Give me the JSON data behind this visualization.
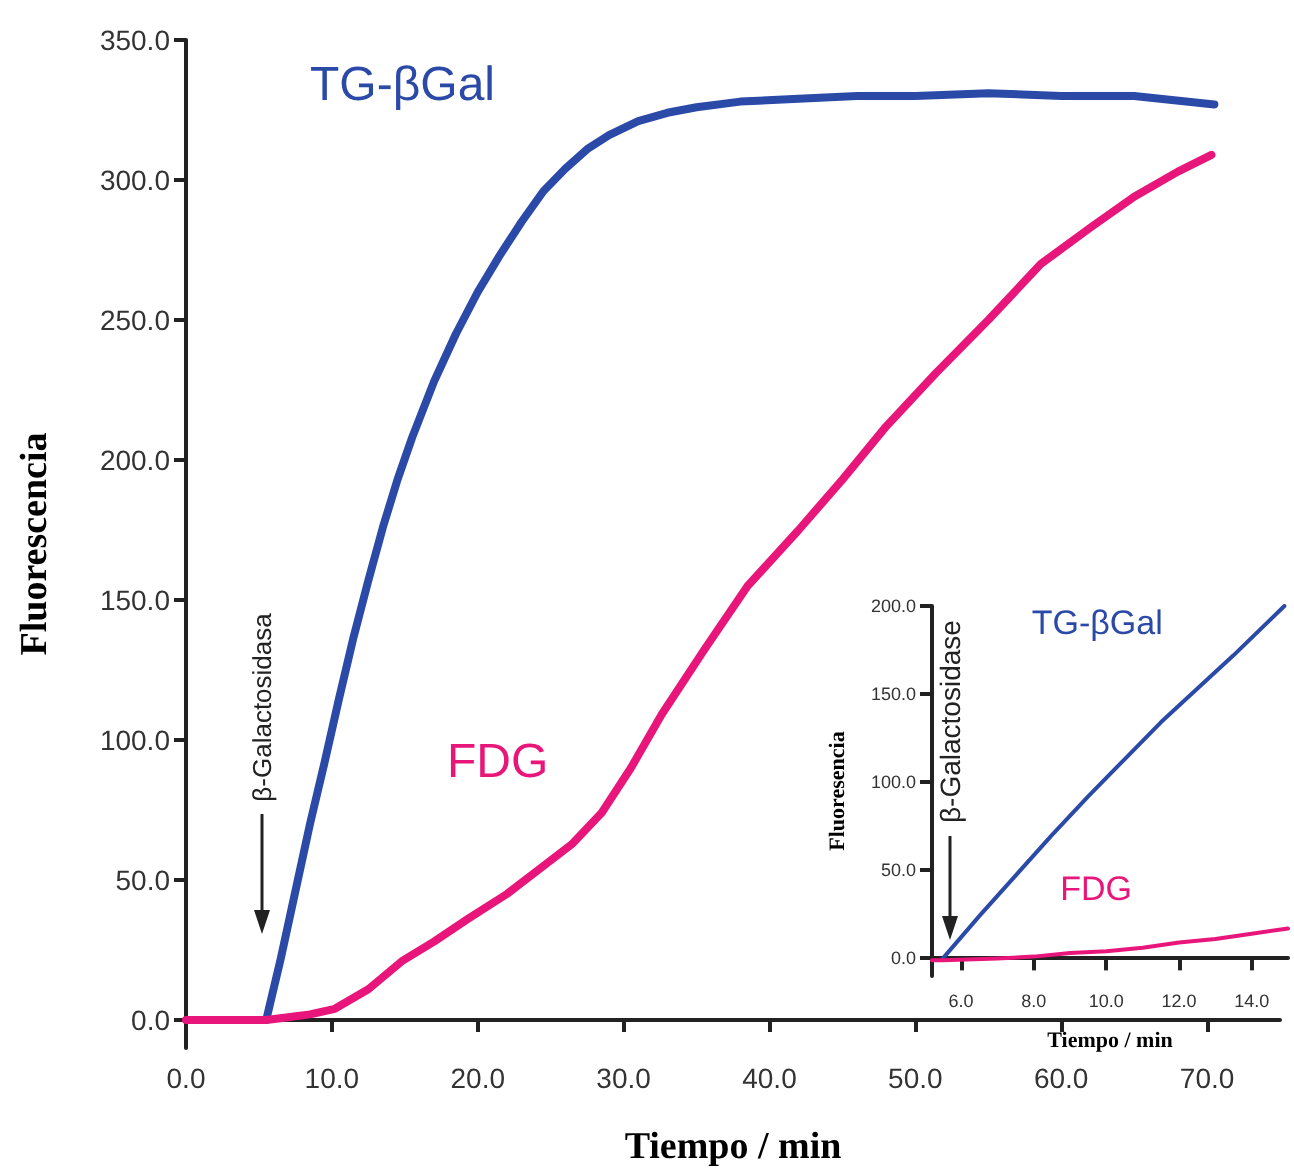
{
  "chart_data": [
    {
      "type": "line",
      "xlabel": "Tiempo / min",
      "ylabel": "Fluorescencia",
      "xlim": [
        0,
        75
      ],
      "xticks": [
        {
          "value": 0,
          "label": "0.0"
        },
        {
          "value": 10,
          "label": "10.0"
        },
        {
          "value": 20,
          "label": "20.0"
        },
        {
          "value": 30,
          "label": "30.0"
        },
        {
          "value": 40,
          "label": "40.0"
        },
        {
          "value": 50,
          "label": "50.0"
        },
        {
          "value": 60,
          "label": "60.0"
        },
        {
          "value": 70,
          "label": "70.0"
        }
      ],
      "ylim": [
        -10,
        350
      ],
      "yticks": [
        {
          "value": 0,
          "label": "0.0"
        },
        {
          "value": 50,
          "label": "50.0"
        },
        {
          "value": 100,
          "label": "100.0"
        },
        {
          "value": 150,
          "label": "150.0"
        },
        {
          "value": 200,
          "label": "200.0"
        },
        {
          "value": 250,
          "label": "250.0"
        },
        {
          "value": 300,
          "label": "300.0"
        },
        {
          "value": 350,
          "label": "350.0"
        }
      ],
      "grid": false,
      "legend": false,
      "marker": "none",
      "line_style": "solid",
      "annotations": [
        "β-Galactosidasa"
      ],
      "series": [
        {
          "name": "TG-βGal",
          "color": "#2b4aa8",
          "x": [
            5.5,
            6.5,
            7.5,
            8.5,
            9.5,
            10.5,
            11.5,
            12.5,
            13.5,
            14.5,
            15.5,
            17,
            18.5,
            20,
            21.5,
            23,
            24.5,
            26,
            27.5,
            29,
            31,
            33,
            35,
            38,
            42,
            46,
            50,
            55,
            60,
            65,
            70.5
          ],
          "values": [
            0,
            22,
            46,
            70,
            92,
            115,
            137,
            157,
            176,
            193,
            208,
            228,
            245,
            260,
            273,
            285,
            296,
            304,
            311,
            316,
            321,
            324,
            326,
            328,
            329,
            330,
            330,
            331,
            330,
            330,
            327
          ]
        },
        {
          "name": "FDG",
          "color": "#e8167a",
          "x": [
            0,
            5.5,
            7,
            8.5,
            10.2,
            12.5,
            14.8,
            17,
            19.3,
            22,
            24,
            26.5,
            28.5,
            30.5,
            32.6,
            35.5,
            38.5,
            42,
            45,
            48,
            51.4,
            55,
            58.6,
            62,
            65,
            68,
            70.3
          ],
          "values": [
            0,
            0,
            1,
            2,
            4,
            11,
            21,
            28,
            36,
            45,
            53,
            63,
            74,
            90,
            109,
            132,
            155,
            175,
            193,
            212,
            231,
            250,
            270,
            283,
            294,
            303,
            309
          ]
        }
      ]
    },
    {
      "type": "line",
      "xlabel": "Tiempo / min",
      "ylabel": "Fluoresencia",
      "xlim": [
        5.2,
        15
      ],
      "xticks": [
        {
          "value": 6,
          "label": "6.0"
        },
        {
          "value": 8,
          "label": "8.0"
        },
        {
          "value": 10,
          "label": "10.0"
        },
        {
          "value": 12,
          "label": "12.0"
        },
        {
          "value": 14,
          "label": "14.0"
        }
      ],
      "ylim": [
        -10,
        200
      ],
      "yticks": [
        {
          "value": 0,
          "label": "0.0"
        },
        {
          "value": 50,
          "label": "50.0"
        },
        {
          "value": 100,
          "label": "100.0"
        },
        {
          "value": 150,
          "label": "150.0"
        },
        {
          "value": 200,
          "label": "200.0"
        }
      ],
      "grid": false,
      "legend": false,
      "marker": "none",
      "line_style": "solid",
      "annotations": [
        "β-Galactosidase"
      ],
      "series": [
        {
          "name": "TG-βGal",
          "color": "#2b4aa8",
          "x": [
            5.5,
            6.5,
            7.5,
            8.5,
            9.5,
            10.5,
            11.5,
            12.5,
            13.5,
            14.9
          ],
          "values": [
            0,
            24,
            47,
            70,
            92,
            113,
            134,
            153,
            172,
            200
          ]
        },
        {
          "name": "FDG",
          "color": "#e8167a",
          "x": [
            5.2,
            5.5,
            7,
            8,
            9,
            10,
            11,
            12,
            13,
            14,
            15
          ],
          "values": [
            -1,
            -1,
            0,
            1,
            3,
            4,
            6,
            9,
            11,
            14,
            17
          ]
        }
      ]
    }
  ]
}
